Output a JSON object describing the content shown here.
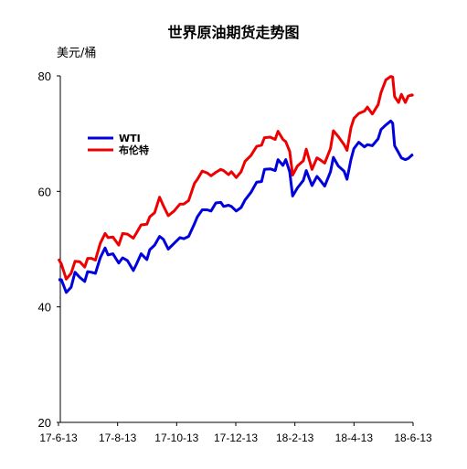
{
  "chart_data": {
    "type": "line",
    "title": "世界原油期货走势图",
    "ylabel": "美元/桶",
    "xlabel": "",
    "ylim": [
      20,
      80
    ],
    "yticks": [
      "20",
      "40",
      "60",
      "80"
    ],
    "xticks": [
      "17-6-13",
      "17-8-13",
      "17-10-13",
      "17-12-13",
      "18-2-13",
      "18-4-13",
      "18-6-13"
    ],
    "xlim": [
      "2017-06-13",
      "2018-06-20"
    ],
    "grid": false,
    "legend_position": "top-left",
    "series": [
      {
        "name": "WTI",
        "color": "#0000dd",
        "points": [
          [
            "2017-06-13",
            44.7
          ],
          [
            "2017-06-16",
            44.7
          ],
          [
            "2017-06-21",
            42.5
          ],
          [
            "2017-06-26",
            43.4
          ],
          [
            "2017-06-30",
            46.0
          ],
          [
            "2017-07-05",
            45.1
          ],
          [
            "2017-07-10",
            44.4
          ],
          [
            "2017-07-13",
            46.1
          ],
          [
            "2017-07-17",
            46.0
          ],
          [
            "2017-07-21",
            45.8
          ],
          [
            "2017-07-26",
            48.5
          ],
          [
            "2017-07-31",
            50.2
          ],
          [
            "2017-08-03",
            49.0
          ],
          [
            "2017-08-08",
            49.2
          ],
          [
            "2017-08-14",
            47.6
          ],
          [
            "2017-08-18",
            48.5
          ],
          [
            "2017-08-23",
            48.0
          ],
          [
            "2017-08-29",
            46.3
          ],
          [
            "2017-09-01",
            47.3
          ],
          [
            "2017-09-06",
            49.2
          ],
          [
            "2017-09-12",
            48.2
          ],
          [
            "2017-09-15",
            49.9
          ],
          [
            "2017-09-20",
            50.7
          ],
          [
            "2017-09-25",
            52.2
          ],
          [
            "2017-09-29",
            51.7
          ],
          [
            "2017-10-04",
            50.0
          ],
          [
            "2017-10-10",
            51.0
          ],
          [
            "2017-10-16",
            52.0
          ],
          [
            "2017-10-20",
            51.8
          ],
          [
            "2017-10-25",
            52.2
          ],
          [
            "2017-10-31",
            54.4
          ],
          [
            "2017-11-03",
            55.6
          ],
          [
            "2017-11-08",
            56.8
          ],
          [
            "2017-11-13",
            56.8
          ],
          [
            "2017-11-17",
            56.6
          ],
          [
            "2017-11-22",
            58.0
          ],
          [
            "2017-11-27",
            58.1
          ],
          [
            "2017-11-30",
            57.4
          ],
          [
            "2017-12-05",
            57.6
          ],
          [
            "2017-12-08",
            57.4
          ],
          [
            "2017-12-13",
            56.6
          ],
          [
            "2017-12-18",
            57.2
          ],
          [
            "2017-12-22",
            58.5
          ],
          [
            "2017-12-28",
            59.8
          ],
          [
            "2018-01-03",
            61.6
          ],
          [
            "2018-01-08",
            61.7
          ],
          [
            "2018-01-11",
            63.8
          ],
          [
            "2018-01-17",
            63.9
          ],
          [
            "2018-01-22",
            63.6
          ],
          [
            "2018-01-25",
            65.5
          ],
          [
            "2018-01-30",
            64.5
          ],
          [
            "2018-02-02",
            65.5
          ],
          [
            "2018-02-06",
            63.4
          ],
          [
            "2018-02-09",
            59.2
          ],
          [
            "2018-02-14",
            60.6
          ],
          [
            "2018-02-20",
            61.9
          ],
          [
            "2018-02-23",
            63.6
          ],
          [
            "2018-03-01",
            61.0
          ],
          [
            "2018-03-06",
            62.6
          ],
          [
            "2018-03-09",
            62.0
          ],
          [
            "2018-03-14",
            60.9
          ],
          [
            "2018-03-20",
            63.4
          ],
          [
            "2018-03-23",
            65.9
          ],
          [
            "2018-03-28",
            64.4
          ],
          [
            "2018-04-03",
            63.5
          ],
          [
            "2018-04-06",
            62.1
          ],
          [
            "2018-04-10",
            65.5
          ],
          [
            "2018-04-13",
            67.4
          ],
          [
            "2018-04-18",
            68.5
          ],
          [
            "2018-04-24",
            67.7
          ],
          [
            "2018-04-27",
            68.1
          ],
          [
            "2018-05-02",
            67.9
          ],
          [
            "2018-05-08",
            69.1
          ],
          [
            "2018-05-11",
            70.7
          ],
          [
            "2018-05-16",
            71.5
          ],
          [
            "2018-05-21",
            72.2
          ],
          [
            "2018-05-23",
            71.8
          ],
          [
            "2018-05-25",
            67.9
          ],
          [
            "2018-05-29",
            66.7
          ],
          [
            "2018-06-01",
            65.8
          ],
          [
            "2018-06-05",
            65.5
          ],
          [
            "2018-06-08",
            65.7
          ],
          [
            "2018-06-12",
            66.3
          ],
          [
            "2018-06-13",
            66.4
          ]
        ]
      },
      {
        "name": "布伦特",
        "color": "#ee0000",
        "points": [
          [
            "2017-06-13",
            48.3
          ],
          [
            "2017-06-16",
            47.4
          ],
          [
            "2017-06-21",
            44.8
          ],
          [
            "2017-06-26",
            45.8
          ],
          [
            "2017-06-30",
            47.9
          ],
          [
            "2017-07-05",
            47.8
          ],
          [
            "2017-07-10",
            46.9
          ],
          [
            "2017-07-13",
            48.4
          ],
          [
            "2017-07-17",
            48.4
          ],
          [
            "2017-07-21",
            48.1
          ],
          [
            "2017-07-26",
            51.0
          ],
          [
            "2017-07-31",
            52.7
          ],
          [
            "2017-08-03",
            52.0
          ],
          [
            "2017-08-08",
            52.1
          ],
          [
            "2017-08-14",
            50.7
          ],
          [
            "2017-08-18",
            52.7
          ],
          [
            "2017-08-23",
            52.6
          ],
          [
            "2017-08-29",
            51.9
          ],
          [
            "2017-09-01",
            52.7
          ],
          [
            "2017-09-06",
            54.2
          ],
          [
            "2017-09-12",
            54.3
          ],
          [
            "2017-09-15",
            55.6
          ],
          [
            "2017-09-20",
            56.3
          ],
          [
            "2017-09-25",
            59.0
          ],
          [
            "2017-09-29",
            57.5
          ],
          [
            "2017-10-04",
            55.8
          ],
          [
            "2017-10-10",
            56.6
          ],
          [
            "2017-10-16",
            57.8
          ],
          [
            "2017-10-20",
            57.8
          ],
          [
            "2017-10-25",
            58.4
          ],
          [
            "2017-10-31",
            61.4
          ],
          [
            "2017-11-03",
            62.1
          ],
          [
            "2017-11-08",
            63.5
          ],
          [
            "2017-11-13",
            63.2
          ],
          [
            "2017-11-17",
            62.7
          ],
          [
            "2017-11-22",
            63.3
          ],
          [
            "2017-11-27",
            63.8
          ],
          [
            "2017-11-30",
            63.6
          ],
          [
            "2017-12-05",
            62.9
          ],
          [
            "2017-12-08",
            63.4
          ],
          [
            "2017-12-13",
            62.4
          ],
          [
            "2017-12-18",
            63.4
          ],
          [
            "2017-12-22",
            65.2
          ],
          [
            "2017-12-28",
            66.2
          ],
          [
            "2018-01-03",
            67.8
          ],
          [
            "2018-01-08",
            68.0
          ],
          [
            "2018-01-11",
            69.3
          ],
          [
            "2018-01-17",
            69.4
          ],
          [
            "2018-01-22",
            69.0
          ],
          [
            "2018-01-25",
            70.4
          ],
          [
            "2018-01-30",
            69.0
          ],
          [
            "2018-02-02",
            68.6
          ],
          [
            "2018-02-06",
            66.9
          ],
          [
            "2018-02-09",
            62.8
          ],
          [
            "2018-02-14",
            64.4
          ],
          [
            "2018-02-20",
            65.3
          ],
          [
            "2018-02-23",
            67.3
          ],
          [
            "2018-03-01",
            63.8
          ],
          [
            "2018-03-06",
            65.8
          ],
          [
            "2018-03-09",
            65.5
          ],
          [
            "2018-03-14",
            64.9
          ],
          [
            "2018-03-20",
            67.4
          ],
          [
            "2018-03-23",
            70.5
          ],
          [
            "2018-03-28",
            69.5
          ],
          [
            "2018-04-03",
            68.1
          ],
          [
            "2018-04-06",
            67.1
          ],
          [
            "2018-04-10",
            71.0
          ],
          [
            "2018-04-13",
            72.6
          ],
          [
            "2018-04-18",
            73.5
          ],
          [
            "2018-04-24",
            73.9
          ],
          [
            "2018-04-27",
            74.6
          ],
          [
            "2018-05-02",
            73.4
          ],
          [
            "2018-05-08",
            75.0
          ],
          [
            "2018-05-11",
            77.1
          ],
          [
            "2018-05-16",
            79.3
          ],
          [
            "2018-05-21",
            79.9
          ],
          [
            "2018-05-23",
            79.8
          ],
          [
            "2018-05-25",
            76.4
          ],
          [
            "2018-05-29",
            75.4
          ],
          [
            "2018-06-01",
            76.8
          ],
          [
            "2018-06-05",
            75.4
          ],
          [
            "2018-06-08",
            76.5
          ],
          [
            "2018-06-12",
            76.7
          ],
          [
            "2018-06-13",
            76.5
          ]
        ]
      }
    ]
  }
}
